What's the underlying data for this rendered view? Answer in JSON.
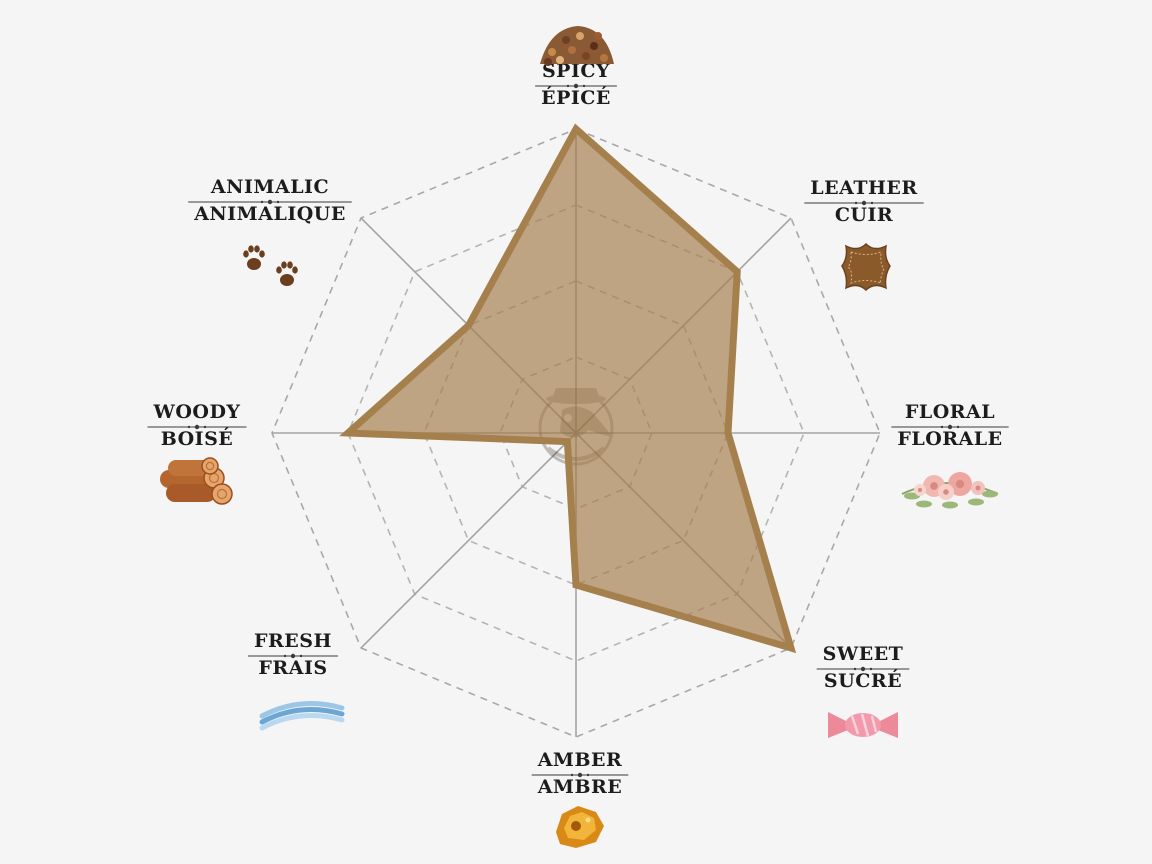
{
  "chart_data": {
    "type": "radar",
    "title": "",
    "axes": [
      {
        "label_en": "SPICY",
        "label_fr": "ÉPICÉ",
        "value": 10,
        "icon": "spice-pile-icon"
      },
      {
        "label_en": "LEATHER",
        "label_fr": "CUIR",
        "value": 7.5,
        "icon": "leather-hide-icon"
      },
      {
        "label_en": "FLORAL",
        "label_fr": "FLORALE",
        "value": 5,
        "icon": "flower-bouquet-icon"
      },
      {
        "label_en": "SWEET",
        "label_fr": "SUCRÉ",
        "value": 10,
        "icon": "candy-icon"
      },
      {
        "label_en": "AMBER",
        "label_fr": "AMBRE",
        "value": 5,
        "icon": "amber-stone-icon"
      },
      {
        "label_en": "FRESH",
        "label_fr": "FRAIS",
        "value": 0,
        "icon": "fresh-breeze-icon"
      },
      {
        "label_en": "WOODY",
        "label_fr": "BOISÉ",
        "value": 7.5,
        "icon": "wood-logs-icon"
      },
      {
        "label_en": "ANIMALIC",
        "label_fr": "ANIMALIQUE",
        "value": 5,
        "icon": "paw-prints-icon"
      }
    ],
    "range": [
      0,
      10
    ],
    "rings": 4,
    "grid": true,
    "colors": {
      "fill": "#a37e4b",
      "stroke": "#a5804d",
      "grid": "#b4b4b4",
      "background": "#f5f5f5",
      "text": "#1c1c1c"
    },
    "center_logo": "plague-doctor-logo-icon"
  }
}
